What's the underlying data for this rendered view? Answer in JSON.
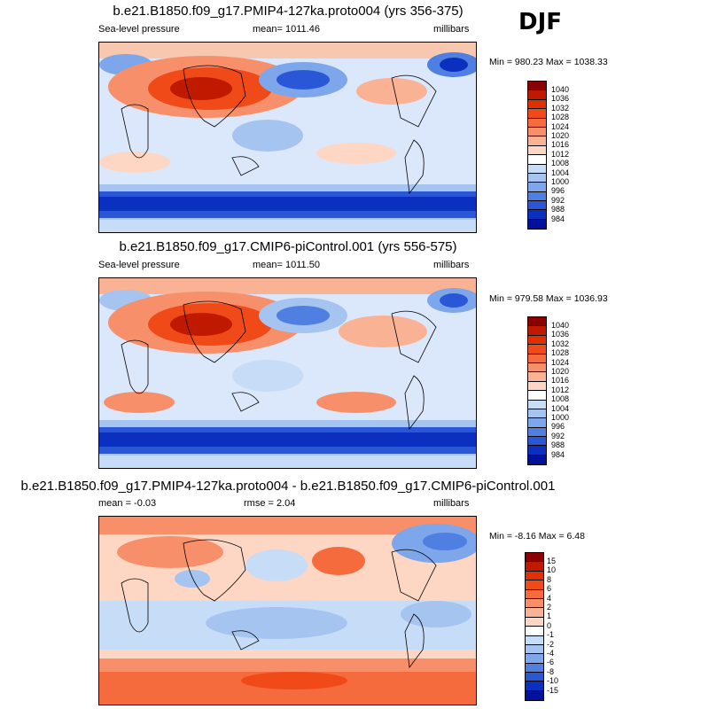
{
  "season": "DJF",
  "panels": [
    {
      "title": "b.e21.B1850.f09_g17.PMIP4-127ka.proto004 (yrs 356-375)",
      "left_label": "Sea-level pressure",
      "center_label": "mean= 1011.46",
      "right_label": "millibars",
      "minmax": "Min = 980.23 Max = 1038.33",
      "levels": [
        "1040",
        "1036",
        "1032",
        "1028",
        "1024",
        "1020",
        "1016",
        "1012",
        "1008",
        "1004",
        "1000",
        "996",
        "992",
        "988",
        "984"
      ],
      "colors": [
        "#8b0000",
        "#bf1a00",
        "#e03000",
        "#f04a18",
        "#f56b3e",
        "#f7906a",
        "#fab294",
        "#fdd7c4",
        "#ffffff",
        "#c7dcf7",
        "#a5c4f0",
        "#7ea6ea",
        "#4f7fe0",
        "#2a57d6",
        "#0b30c0",
        "#00129a"
      ]
    },
    {
      "title": "b.e21.B1850.f09_g17.CMIP6-piControl.001 (yrs 556-575)",
      "left_label": "Sea-level pressure",
      "center_label": "mean= 1011.50",
      "right_label": "millibars",
      "minmax": "Min = 979.58 Max = 1036.93",
      "levels": [
        "1040",
        "1036",
        "1032",
        "1028",
        "1024",
        "1020",
        "1016",
        "1012",
        "1008",
        "1004",
        "1000",
        "996",
        "992",
        "988",
        "984"
      ],
      "colors": [
        "#8b0000",
        "#bf1a00",
        "#e03000",
        "#f04a18",
        "#f56b3e",
        "#f7906a",
        "#fab294",
        "#fdd7c4",
        "#ffffff",
        "#c7dcf7",
        "#a5c4f0",
        "#7ea6ea",
        "#4f7fe0",
        "#2a57d6",
        "#0b30c0",
        "#00129a"
      ]
    },
    {
      "title": "b.e21.B1850.f09_g17.PMIP4-127ka.proto004 - b.e21.B1850.f09_g17.CMIP6-piControl.001",
      "left_label": "mean =  -0.03",
      "center_label": "rmse =   2.04",
      "right_label": "millibars",
      "minmax": "Min =  -8.16 Max =   6.48",
      "levels": [
        "15",
        "10",
        "8",
        "6",
        "4",
        "2",
        "1",
        "0",
        "-1",
        "-2",
        "-4",
        "-6",
        "-8",
        "-10",
        "-15"
      ],
      "colors": [
        "#8b0000",
        "#bf1a00",
        "#e03000",
        "#f04a18",
        "#f56b3e",
        "#f7906a",
        "#fab294",
        "#fdd7c4",
        "#ffffff",
        "#c7dcf7",
        "#a5c4f0",
        "#7ea6ea",
        "#4f7fe0",
        "#2a57d6",
        "#0b30c0",
        "#00129a"
      ]
    }
  ],
  "chart_data": [
    {
      "type": "heatmap",
      "title": "b.e21.B1850.f09_g17.PMIP4-127ka.proto004 (yrs 356-375)",
      "variable": "Sea-level pressure",
      "units": "millibars",
      "mean": 1011.46,
      "min": 980.23,
      "max": 1038.33,
      "contour_levels": [
        984,
        988,
        992,
        996,
        1000,
        1004,
        1008,
        1012,
        1016,
        1020,
        1024,
        1028,
        1032,
        1036,
        1040
      ]
    },
    {
      "type": "heatmap",
      "title": "b.e21.B1850.f09_g17.CMIP6-piControl.001 (yrs 556-575)",
      "variable": "Sea-level pressure",
      "units": "millibars",
      "mean": 1011.5,
      "min": 979.58,
      "max": 1036.93,
      "contour_levels": [
        984,
        988,
        992,
        996,
        1000,
        1004,
        1008,
        1012,
        1016,
        1020,
        1024,
        1028,
        1032,
        1036,
        1040
      ]
    },
    {
      "type": "heatmap",
      "title": "b.e21.B1850.f09_g17.PMIP4-127ka.proto004 - b.e21.B1850.f09_g17.CMIP6-piControl.001",
      "units": "millibars",
      "mean": -0.03,
      "rmse": 2.04,
      "min": -8.16,
      "max": 6.48,
      "contour_levels": [
        -15,
        -10,
        -8,
        -6,
        -4,
        -2,
        -1,
        0,
        1,
        2,
        4,
        6,
        8,
        10,
        15
      ]
    }
  ]
}
